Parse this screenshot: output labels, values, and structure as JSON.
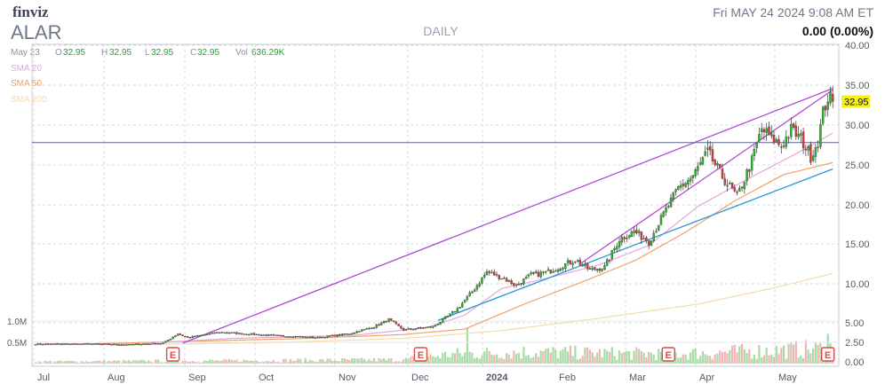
{
  "header": {
    "logo": "finviz",
    "ticker": "ALAR",
    "timeframe": "DAILY",
    "datetime": "Fri MAY 24 2024 9:08 AM ET",
    "change": "0.00 (0.00%)"
  },
  "ohlc": {
    "date": "May 23",
    "o_label": "O",
    "o": "32.95",
    "h_label": "H",
    "h": "32.95",
    "l_label": "L",
    "l": "32.95",
    "c_label": "C",
    "c": "32.95",
    "vol_label": "Vol",
    "vol": "636.29K"
  },
  "legend": {
    "sma20": "SMA 20",
    "sma50": "SMA 50",
    "sma200": "SMA 200"
  },
  "colors": {
    "up": "#2bb32b",
    "down": "#d93a3a",
    "sma20": "#e3a6dd",
    "sma50": "#f0a266",
    "sma200": "#f4dcac",
    "trend_upper": "#b04bd0",
    "trend_lower": "#2b96d6",
    "horizontal": "#5a6690",
    "grid": "#d5d8de",
    "price_tag": "#f5ef1c",
    "earnings": "#e04848",
    "vol_up": "#a7dca7",
    "vol_down": "#f2b5b5"
  },
  "chart_data": {
    "type": "candlestick",
    "x_axis_labels": [
      "Jul",
      "Aug",
      "Sep",
      "Oct",
      "Nov",
      "Dec",
      "2024",
      "Feb",
      "Mar",
      "Apr",
      "May"
    ],
    "y_axis_ticks": [
      "40.00",
      "35.00",
      "30.00",
      "25.00",
      "20.00",
      "15.00",
      "10.00",
      "5.00",
      "2.50",
      "0.00"
    ],
    "y_range": [
      0,
      40
    ],
    "last_price": "32.95",
    "volume_axis_labels": [
      "1.0M",
      "0.5M"
    ],
    "earnings_markers": [
      "E",
      "E",
      "E",
      "E"
    ],
    "price_path": [
      [
        0,
        2.3
      ],
      [
        20,
        2.3
      ],
      [
        38,
        2.2
      ],
      [
        52,
        2.4
      ],
      [
        58,
        3.6
      ],
      [
        62,
        3.1
      ],
      [
        75,
        3.8
      ],
      [
        95,
        3.4
      ],
      [
        115,
        3.1
      ],
      [
        128,
        3.6
      ],
      [
        138,
        4.5
      ],
      [
        144,
        5.4
      ],
      [
        150,
        4.1
      ],
      [
        162,
        4.5
      ],
      [
        168,
        5.8
      ],
      [
        172,
        6.8
      ],
      [
        178,
        9.0
      ],
      [
        184,
        11.5
      ],
      [
        190,
        10.8
      ],
      [
        196,
        9.8
      ],
      [
        202,
        11.1
      ],
      [
        208,
        11.4
      ],
      [
        214,
        12.2
      ],
      [
        220,
        13.0
      ],
      [
        226,
        11.7
      ],
      [
        232,
        12.1
      ],
      [
        238,
        15.6
      ],
      [
        244,
        16.6
      ],
      [
        250,
        15.3
      ],
      [
        256,
        18.8
      ],
      [
        262,
        22.1
      ],
      [
        268,
        23.6
      ],
      [
        274,
        26.6
      ],
      [
        280,
        23.5
      ],
      [
        286,
        21.0
      ],
      [
        292,
        25.5
      ],
      [
        296,
        29.5
      ],
      [
        300,
        28.4
      ],
      [
        304,
        27.4
      ],
      [
        308,
        29.4
      ],
      [
        312,
        28.3
      ],
      [
        316,
        26.1
      ],
      [
        319,
        28.0
      ],
      [
        321,
        31.5
      ],
      [
        323,
        33.5
      ],
      [
        325,
        32.95
      ]
    ],
    "sma20": [
      [
        0,
        2.2
      ],
      [
        40,
        2.3
      ],
      [
        80,
        3.0
      ],
      [
        130,
        3.4
      ],
      [
        160,
        4.4
      ],
      [
        175,
        6.0
      ],
      [
        190,
        9.4
      ],
      [
        210,
        10.8
      ],
      [
        230,
        12.4
      ],
      [
        250,
        14.8
      ],
      [
        270,
        19.8
      ],
      [
        290,
        23.2
      ],
      [
        310,
        26.4
      ],
      [
        325,
        29.0
      ]
    ],
    "sma50": [
      [
        10,
        2.2
      ],
      [
        60,
        2.6
      ],
      [
        110,
        3.0
      ],
      [
        150,
        3.5
      ],
      [
        175,
        4.2
      ],
      [
        200,
        7.5
      ],
      [
        225,
        10.5
      ],
      [
        245,
        13.0
      ],
      [
        265,
        16.5
      ],
      [
        285,
        20.5
      ],
      [
        305,
        23.8
      ],
      [
        325,
        25.3
      ]
    ],
    "sma200": [
      [
        40,
        2.2
      ],
      [
        100,
        2.5
      ],
      [
        150,
        3.0
      ],
      [
        190,
        4.0
      ],
      [
        230,
        5.6
      ],
      [
        270,
        7.4
      ],
      [
        300,
        9.4
      ],
      [
        325,
        11.3
      ]
    ],
    "trendline_upper": [
      [
        60,
        2.4
      ],
      [
        325,
        34.6
      ]
    ],
    "trendline_upper_2": [
      [
        222,
        12.5
      ],
      [
        325,
        34.4
      ]
    ],
    "trendline_lower": [
      [
        164,
        5.3
      ],
      [
        325,
        24.5
      ]
    ],
    "horizontal_line": 27.8
  }
}
